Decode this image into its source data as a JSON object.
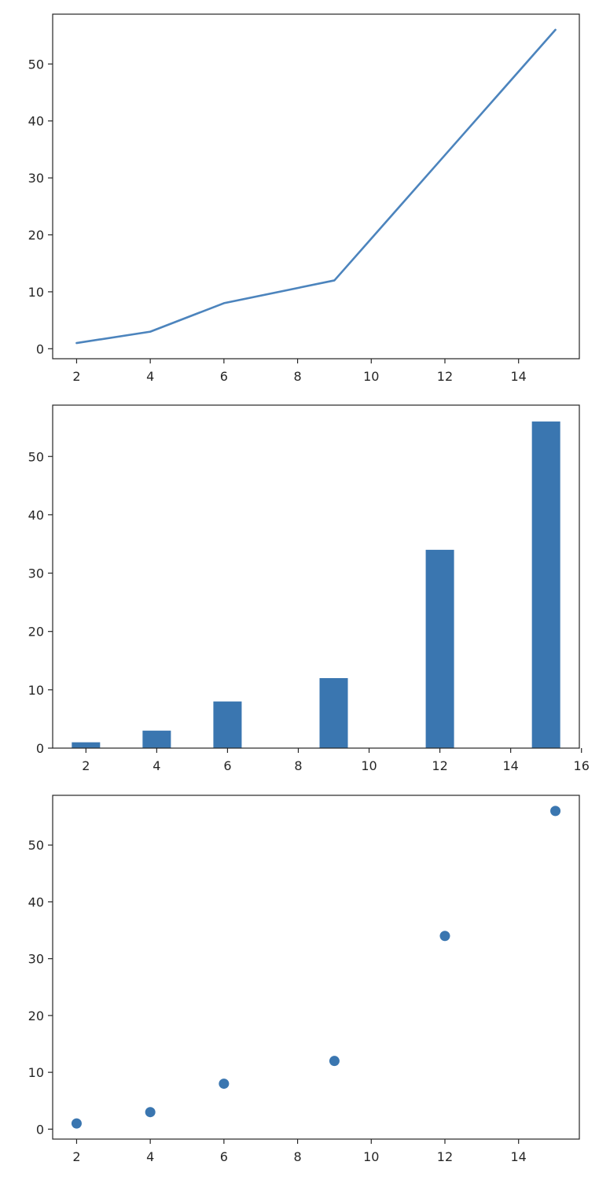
{
  "chart_data": [
    {
      "type": "line",
      "x": [
        2,
        4,
        6,
        9,
        12,
        15
      ],
      "y": [
        1,
        3,
        8,
        12,
        34,
        56
      ],
      "xlim": [
        1.35,
        15.65
      ],
      "ylim": [
        -1.75,
        58.75
      ],
      "xticks": [
        2,
        4,
        6,
        8,
        10,
        12,
        14
      ],
      "yticks": [
        0,
        10,
        20,
        30,
        40,
        50
      ],
      "color": "#4c84bd",
      "grid": false
    },
    {
      "type": "bar",
      "x": [
        2,
        4,
        6,
        9,
        12,
        15
      ],
      "y": [
        1,
        3,
        8,
        12,
        34,
        56
      ],
      "bar_width": 0.8,
      "xlim": [
        1.06,
        15.94
      ],
      "ylim": [
        0,
        58.8
      ],
      "xticks": [
        2,
        4,
        6,
        8,
        10,
        12,
        14,
        16
      ],
      "yticks": [
        0,
        10,
        20,
        30,
        40,
        50
      ],
      "color": "#3a76b0",
      "grid": false
    },
    {
      "type": "scatter",
      "x": [
        2,
        4,
        6,
        9,
        12,
        15
      ],
      "y": [
        1,
        3,
        8,
        12,
        34,
        56
      ],
      "xlim": [
        1.35,
        15.65
      ],
      "ylim": [
        -1.75,
        58.75
      ],
      "xticks": [
        2,
        4,
        6,
        8,
        10,
        12,
        14
      ],
      "yticks": [
        0,
        10,
        20,
        30,
        40,
        50
      ],
      "color": "#3a76b0",
      "grid": false
    }
  ]
}
